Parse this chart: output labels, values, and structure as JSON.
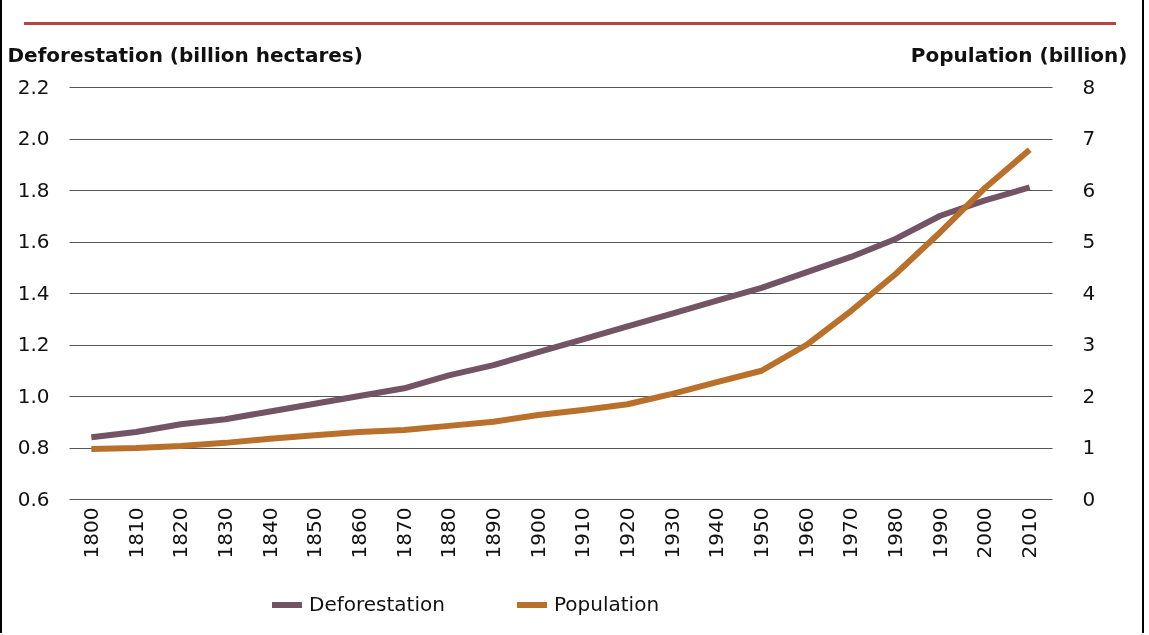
{
  "chart_data": {
    "type": "line",
    "categories": [
      "1800",
      "1810",
      "1820",
      "1830",
      "1840",
      "1850",
      "1860",
      "1870",
      "1880",
      "1890",
      "1900",
      "1910",
      "1920",
      "1930",
      "1940",
      "1950",
      "1960",
      "1970",
      "1980",
      "1990",
      "2000",
      "2010"
    ],
    "ylabel": "Deforestation (billion hectares)",
    "y2label": "Population (billion)",
    "ylim": [
      0.6,
      2.2
    ],
    "yticks": [
      0.6,
      0.8,
      {
        "value": 1,
        "label": "1.0"
      },
      1.2,
      1.4,
      1.6,
      1.8,
      {
        "value": 2,
        "label": "2.0"
      },
      2.2
    ],
    "y2lim": [
      0,
      8
    ],
    "y2ticks": [
      0,
      1,
      2,
      3,
      4,
      5,
      6,
      7,
      8
    ],
    "grid": "y",
    "legend": "bottom",
    "marker": "none",
    "line_style": "solid",
    "series": [
      {
        "name": "Deforestation",
        "color": "#735465",
        "values": [
          0.84,
          0.86,
          0.89,
          0.91,
          0.94,
          0.97,
          1.0,
          1.03,
          1.08,
          1.12,
          1.17,
          1.22,
          1.27,
          1.32,
          1.37,
          1.42,
          1.48,
          1.54,
          1.61,
          1.7,
          1.76,
          1.81
        ]
      },
      {
        "name": "Population",
        "color": "#b8702a",
        "axis": "y2",
        "values": [
          0.97,
          0.99,
          1.03,
          1.09,
          1.17,
          1.24,
          1.3,
          1.34,
          1.42,
          1.5,
          1.63,
          1.73,
          1.84,
          2.04,
          2.27,
          2.49,
          2.99,
          3.65,
          4.37,
          5.18,
          6.04,
          6.78
        ]
      }
    ]
  }
}
